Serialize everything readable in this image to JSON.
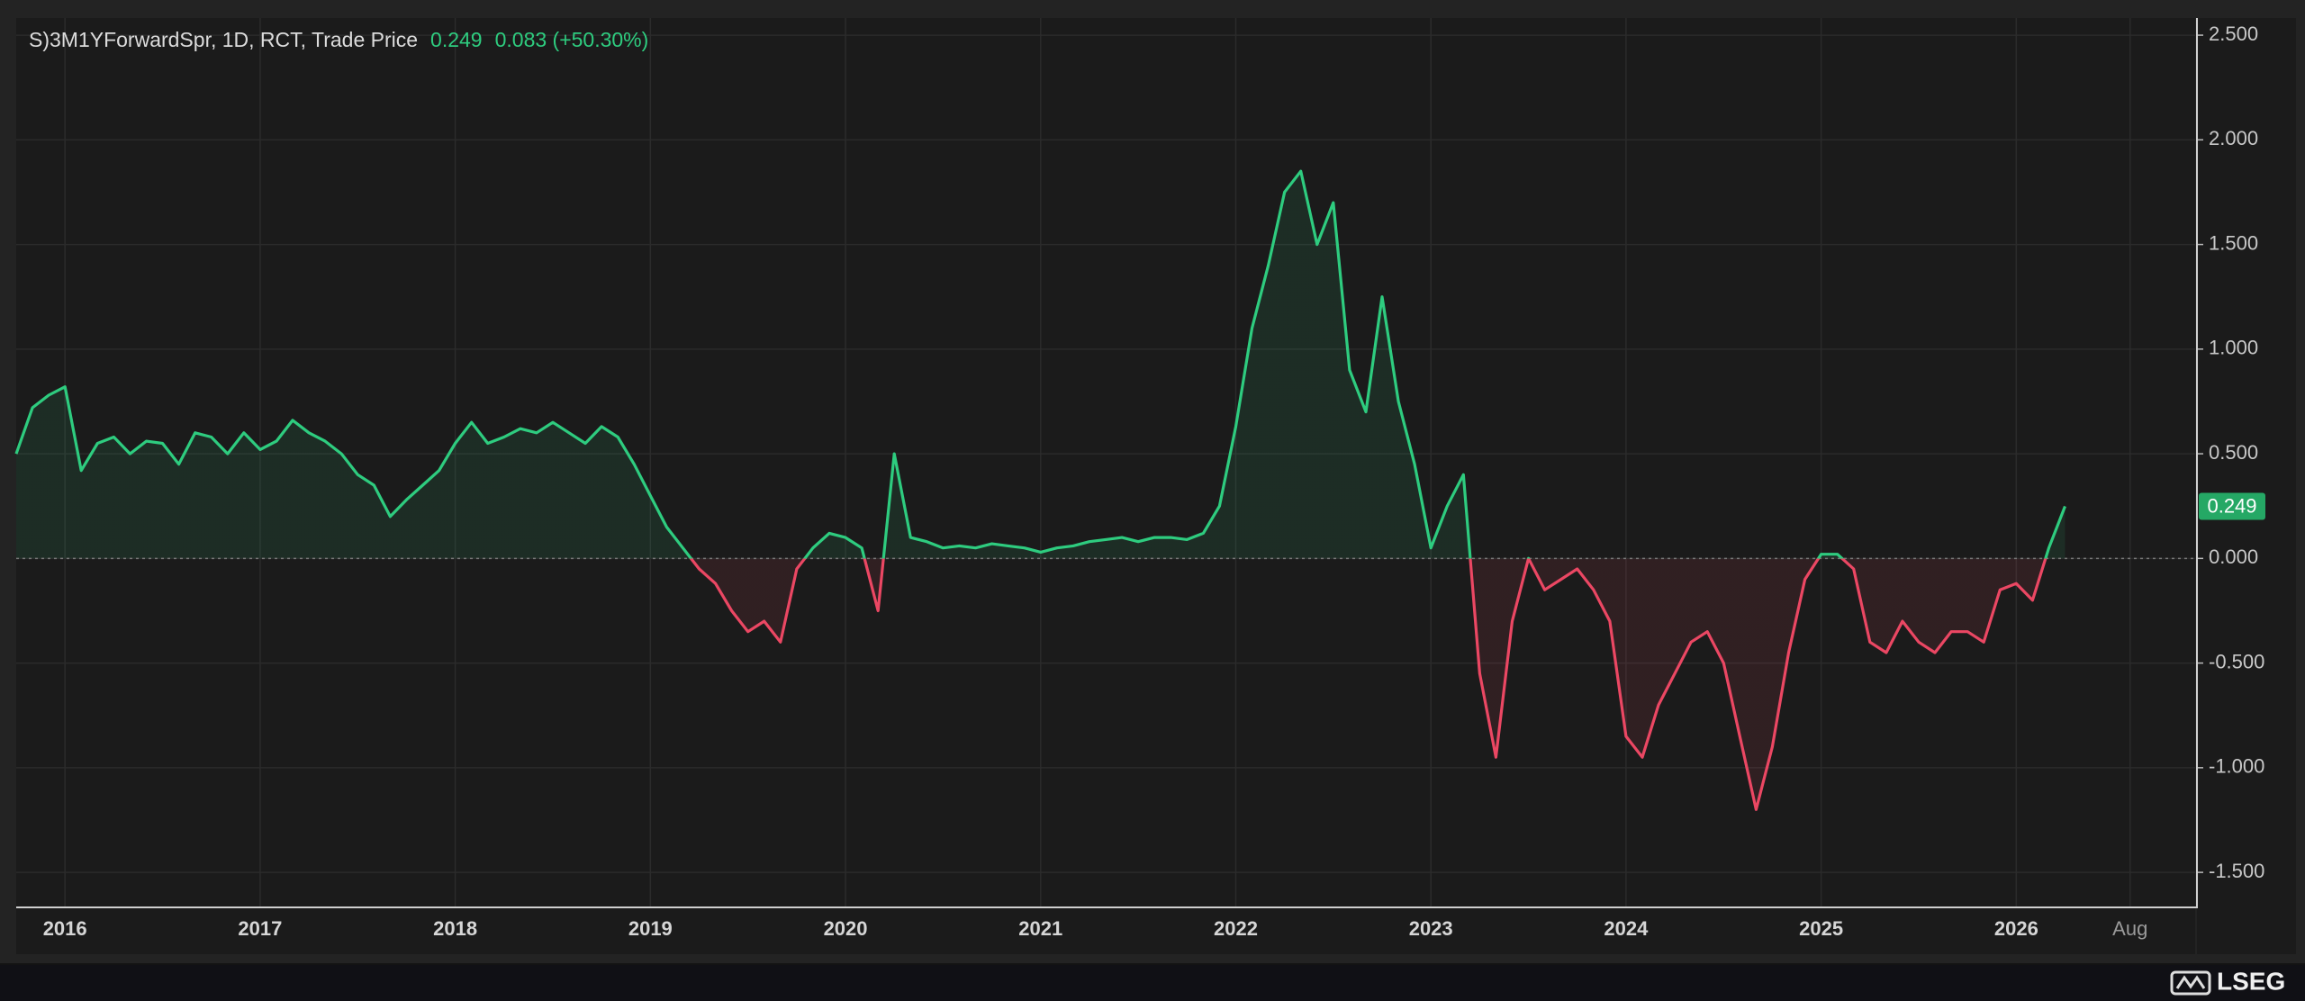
{
  "chart_data": {
    "type": "line",
    "header": {
      "change": "0.083 (+50.30%)"
    },
    "brand": "LSEG",
    "x": [
      "2015-10",
      "2015-11",
      "2015-12",
      "2016-01",
      "2016-02",
      "2016-03",
      "2016-04",
      "2016-05",
      "2016-06",
      "2016-07",
      "2016-08",
      "2016-09",
      "2016-10",
      "2016-11",
      "2016-12",
      "2017-01",
      "2017-02",
      "2017-03",
      "2017-04",
      "2017-05",
      "2017-06",
      "2017-07",
      "2017-08",
      "2017-09",
      "2017-10",
      "2017-11",
      "2017-12",
      "2018-01",
      "2018-02",
      "2018-03",
      "2018-04",
      "2018-05",
      "2018-06",
      "2018-07",
      "2018-08",
      "2018-09",
      "2018-10",
      "2018-11",
      "2018-12",
      "2019-01",
      "2019-02",
      "2019-03",
      "2019-04",
      "2019-05",
      "2019-06",
      "2019-07",
      "2019-08",
      "2019-09",
      "2019-10",
      "2019-11",
      "2019-12",
      "2020-01",
      "2020-02",
      "2020-03",
      "2020-04",
      "2020-05",
      "2020-06",
      "2020-07",
      "2020-08",
      "2020-09",
      "2020-10",
      "2020-11",
      "2020-12",
      "2021-01",
      "2021-02",
      "2021-03",
      "2021-04",
      "2021-05",
      "2021-06",
      "2021-07",
      "2021-08",
      "2021-09",
      "2021-10",
      "2021-11",
      "2021-12",
      "2022-01",
      "2022-02",
      "2022-03",
      "2022-04",
      "2022-05",
      "2022-06",
      "2022-07",
      "2022-08",
      "2022-09",
      "2022-10",
      "2022-11",
      "2022-12",
      "2023-01",
      "2023-02",
      "2023-03",
      "2023-04",
      "2023-05",
      "2023-06",
      "2023-07",
      "2023-08",
      "2023-09",
      "2023-10",
      "2023-11",
      "2023-12",
      "2024-01",
      "2024-02",
      "2024-03",
      "2024-04",
      "2024-05",
      "2024-06",
      "2024-07",
      "2024-08",
      "2024-09",
      "2024-10",
      "2024-11",
      "2024-12",
      "2025-01",
      "2025-02",
      "2025-03",
      "2025-04",
      "2025-05",
      "2025-06",
      "2025-07",
      "2025-08",
      "2025-09",
      "2025-10",
      "2025-11",
      "2025-12",
      "2026-01",
      "2026-02",
      "2026-03",
      "2026-04"
    ],
    "series": [
      {
        "name": "S)3M1YForwardSpr, 1D, RCT, Trade Price",
        "up_color": "#2ecc7f",
        "down_color": "#eb4763",
        "values": [
          0.5,
          0.72,
          0.78,
          0.82,
          0.42,
          0.55,
          0.58,
          0.5,
          0.56,
          0.55,
          0.45,
          0.6,
          0.58,
          0.5,
          0.6,
          0.52,
          0.56,
          0.66,
          0.6,
          0.56,
          0.5,
          0.4,
          0.35,
          0.2,
          0.28,
          0.35,
          0.42,
          0.55,
          0.65,
          0.55,
          0.58,
          0.62,
          0.6,
          0.65,
          0.6,
          0.55,
          0.63,
          0.58,
          0.45,
          0.3,
          0.15,
          0.05,
          -0.05,
          -0.12,
          -0.25,
          -0.35,
          -0.3,
          -0.4,
          -0.05,
          0.05,
          0.12,
          0.1,
          0.05,
          -0.25,
          0.5,
          0.1,
          0.08,
          0.05,
          0.06,
          0.05,
          0.07,
          0.06,
          0.05,
          0.03,
          0.05,
          0.06,
          0.08,
          0.09,
          0.1,
          0.08,
          0.1,
          0.1,
          0.09,
          0.12,
          0.25,
          0.63,
          1.1,
          1.4,
          1.75,
          1.85,
          1.5,
          1.7,
          0.9,
          0.7,
          1.25,
          0.75,
          0.45,
          0.05,
          0.25,
          0.4,
          -0.55,
          -0.95,
          -0.3,
          0.0,
          -0.15,
          -0.1,
          -0.05,
          -0.15,
          -0.3,
          -0.85,
          -0.95,
          -0.7,
          -0.55,
          -0.4,
          -0.35,
          -0.5,
          -0.85,
          -1.2,
          -0.9,
          -0.45,
          -0.1,
          0.02,
          0.02,
          -0.05,
          -0.4,
          -0.45,
          -0.3,
          -0.4,
          -0.45,
          -0.35,
          -0.35,
          -0.4,
          -0.15,
          -0.12,
          -0.2,
          0.05,
          0.249
        ]
      }
    ],
    "xlim": [
      "2015-10",
      "2026-12"
    ],
    "xticks": [
      {
        "value": "2016-01",
        "label": "2016"
      },
      {
        "value": "2017-01",
        "label": "2017"
      },
      {
        "value": "2018-01",
        "label": "2018"
      },
      {
        "value": "2019-01",
        "label": "2019"
      },
      {
        "value": "2020-01",
        "label": "2020"
      },
      {
        "value": "2021-01",
        "label": "2021"
      },
      {
        "value": "2022-01",
        "label": "2022"
      },
      {
        "value": "2023-01",
        "label": "2023"
      },
      {
        "value": "2024-01",
        "label": "2024"
      },
      {
        "value": "2025-01",
        "label": "2025"
      },
      {
        "value": "2026-01",
        "label": "2026"
      },
      {
        "value": "2026-08",
        "label": "Aug"
      }
    ],
    "ylim": [
      -1.663,
      2.582
    ],
    "yticks": [
      {
        "value": -1.5,
        "label": "-1.500"
      },
      {
        "value": -1,
        "label": "-1.000"
      },
      {
        "value": -0.5,
        "label": "-0.500"
      },
      {
        "value": 0,
        "label": "0.000"
      },
      {
        "value": 0.5,
        "label": "0.500"
      },
      {
        "value": 1,
        "label": "1.000"
      },
      {
        "value": 1.5,
        "label": "1.500"
      },
      {
        "value": 2,
        "label": "2.000"
      },
      {
        "value": 2.5,
        "label": "2.500"
      }
    ],
    "grid": true
  }
}
